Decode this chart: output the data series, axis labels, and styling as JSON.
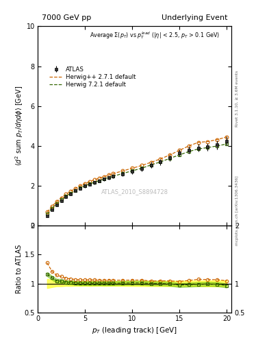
{
  "title_left": "7000 GeV pp",
  "title_right": "Underlying Event",
  "ylabel_main": "$\\langle d^2$ sum $p_T/d\\eta d\\phi\\rangle$ [GeV]",
  "ylabel_ratio": "Ratio to ATLAS",
  "xlabel": "$p_T$ (leading track) [GeV]",
  "annotation": "Average $\\Sigma(p_T)$ vs $p_T^{lead}$ ($|\\eta|$ < 2.5, $p_T$ > 0.1 GeV)",
  "watermark": "ATLAS_2010_S8894728",
  "right_label_top": "Rivet 3.1.10, ≥ 3.6M events",
  "right_label_bottom": "mcplots.cern.ch [arXiv:1306.3436]",
  "ylim_main": [
    0,
    10
  ],
  "ylim_ratio": [
    0.5,
    2.0
  ],
  "xlim": [
    0.5,
    20.5
  ],
  "atlas_x": [
    1.0,
    1.5,
    2.0,
    2.5,
    3.0,
    3.5,
    4.0,
    4.5,
    5.0,
    5.5,
    6.0,
    6.5,
    7.0,
    7.5,
    8.0,
    9.0,
    10.0,
    11.0,
    12.0,
    13.0,
    14.0,
    15.0,
    16.0,
    17.0,
    18.0,
    19.0,
    20.0
  ],
  "atlas_y": [
    0.5,
    0.8,
    1.05,
    1.25,
    1.45,
    1.6,
    1.75,
    1.88,
    1.99,
    2.08,
    2.17,
    2.25,
    2.33,
    2.4,
    2.47,
    2.6,
    2.72,
    2.85,
    3.05,
    3.2,
    3.4,
    3.65,
    3.8,
    3.9,
    3.95,
    4.05,
    4.25
  ],
  "atlas_yerr": [
    0.04,
    0.05,
    0.05,
    0.06,
    0.06,
    0.07,
    0.07,
    0.08,
    0.08,
    0.09,
    0.09,
    0.09,
    0.1,
    0.1,
    0.1,
    0.11,
    0.12,
    0.13,
    0.14,
    0.15,
    0.16,
    0.17,
    0.18,
    0.19,
    0.2,
    0.21,
    0.22
  ],
  "herwig1_x": [
    1.0,
    1.5,
    2.0,
    2.5,
    3.0,
    3.5,
    4.0,
    4.5,
    5.0,
    5.5,
    6.0,
    6.5,
    7.0,
    7.5,
    8.0,
    9.0,
    10.0,
    11.0,
    12.0,
    13.0,
    14.0,
    15.0,
    16.0,
    17.0,
    18.0,
    19.0,
    20.0
  ],
  "herwig1_y": [
    0.68,
    0.97,
    1.2,
    1.4,
    1.58,
    1.73,
    1.87,
    2.0,
    2.11,
    2.21,
    2.3,
    2.38,
    2.46,
    2.54,
    2.61,
    2.75,
    2.88,
    3.02,
    3.18,
    3.35,
    3.55,
    3.78,
    4.0,
    4.18,
    4.22,
    4.32,
    4.45
  ],
  "herwig1_color": "#cc6600",
  "herwig1_label": "Herwig++ 2.7.1 default",
  "herwig2_x": [
    1.0,
    1.5,
    2.0,
    2.5,
    3.0,
    3.5,
    4.0,
    4.5,
    5.0,
    5.5,
    6.0,
    6.5,
    7.0,
    7.5,
    8.0,
    9.0,
    10.0,
    11.0,
    12.0,
    13.0,
    14.0,
    15.0,
    16.0,
    17.0,
    18.0,
    19.0,
    20.0
  ],
  "herwig2_y": [
    0.58,
    0.88,
    1.1,
    1.3,
    1.48,
    1.63,
    1.77,
    1.89,
    2.0,
    2.09,
    2.18,
    2.26,
    2.34,
    2.41,
    2.48,
    2.62,
    2.75,
    2.88,
    3.05,
    3.2,
    3.38,
    3.55,
    3.72,
    3.85,
    3.92,
    4.0,
    4.1
  ],
  "herwig2_color": "#336600",
  "herwig2_label": "Herwig 7.2.1 default",
  "atlas_color": "#000000",
  "bg_color": "#ffffff",
  "inner_bg": "#ffffff",
  "yticks_main": [
    0,
    2,
    4,
    6,
    8,
    10
  ],
  "yticks_ratio": [
    0.5,
    1.0,
    1.5,
    2.0
  ]
}
